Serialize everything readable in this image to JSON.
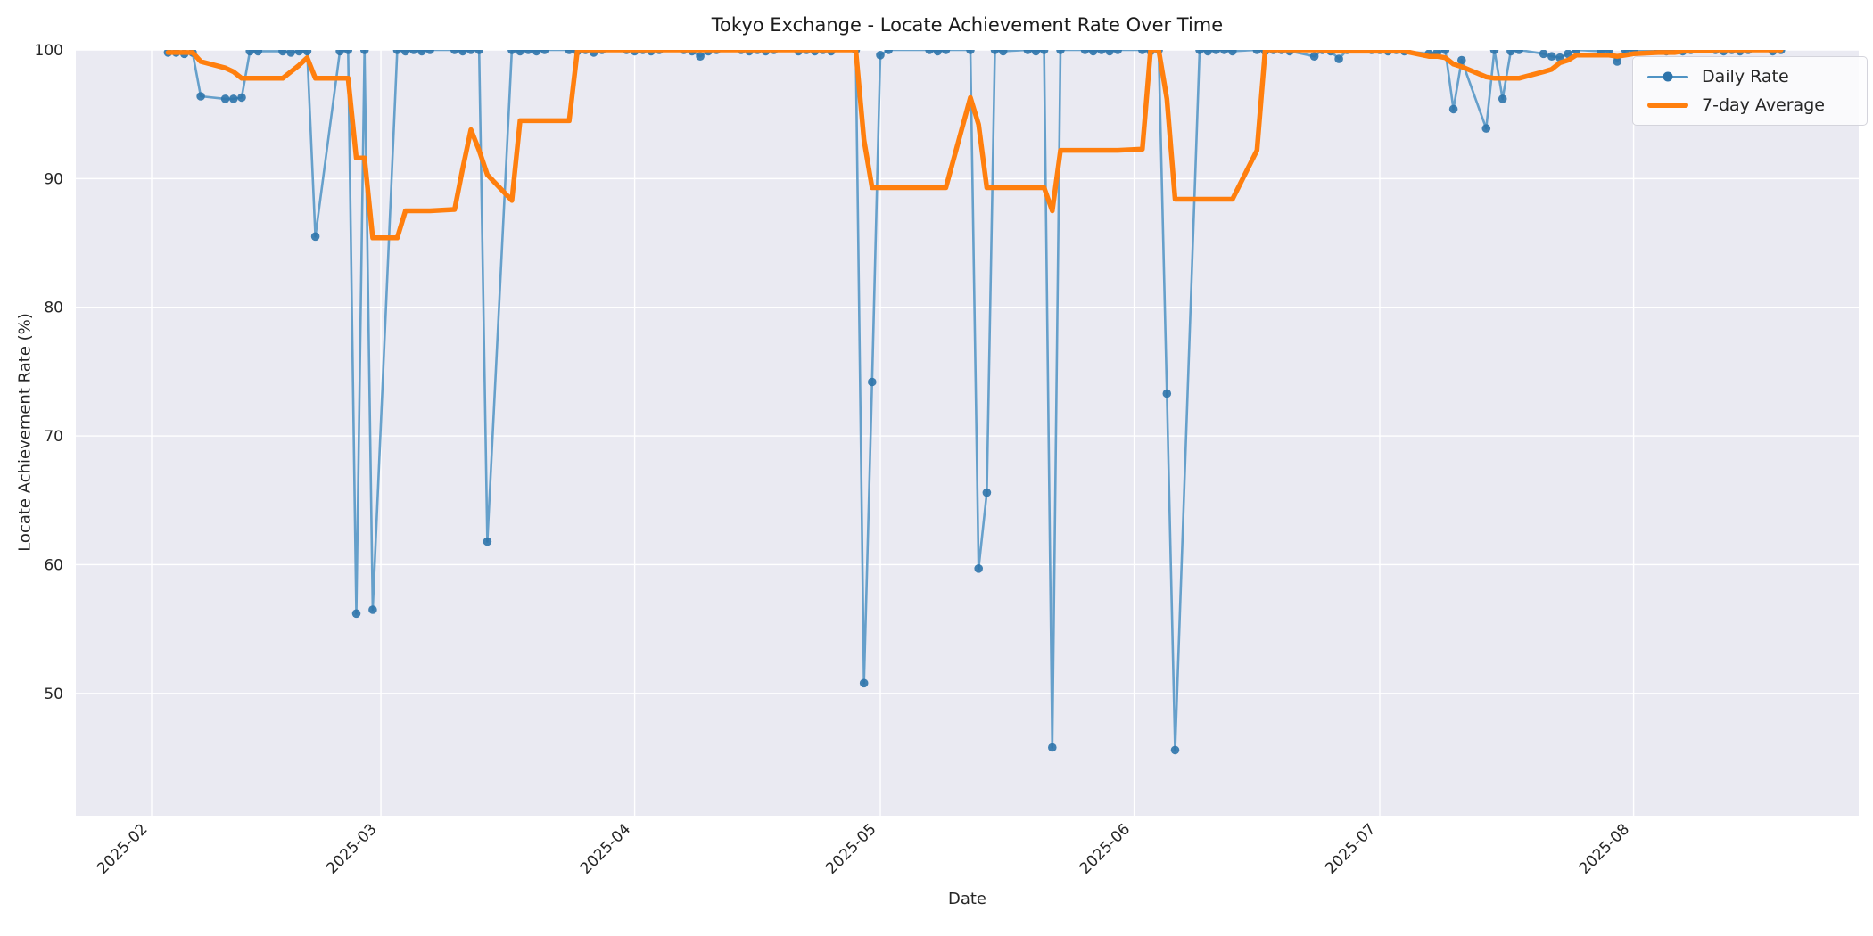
{
  "chart_data": {
    "type": "line",
    "title": "Tokyo Exchange - Locate Achievement Rate Over Time",
    "xlabel": "Date",
    "ylabel": "Locate Achievement Rate (%)",
    "x_tick_labels": [
      "2025-02",
      "2025-03",
      "2025-04",
      "2025-05",
      "2025-06",
      "2025-07",
      "2025-08"
    ],
    "y_tick_labels": [
      100,
      90,
      80,
      70,
      60,
      50
    ],
    "ylim": [
      40.5,
      100
    ],
    "grid": true,
    "legend_position": "upper right",
    "plot_background": "#eaeaf2",
    "grid_color": "#ffffff",
    "dates": [
      "2025-02-03",
      "2025-02-04",
      "2025-02-05",
      "2025-02-06",
      "2025-02-07",
      "2025-02-10",
      "2025-02-11",
      "2025-02-12",
      "2025-02-13",
      "2025-02-14",
      "2025-02-17",
      "2025-02-18",
      "2025-02-19",
      "2025-02-20",
      "2025-02-21",
      "2025-02-24",
      "2025-02-25",
      "2025-02-26",
      "2025-02-27",
      "2025-02-28",
      "2025-03-03",
      "2025-03-04",
      "2025-03-05",
      "2025-03-06",
      "2025-03-07",
      "2025-03-10",
      "2025-03-11",
      "2025-03-12",
      "2025-03-13",
      "2025-03-14",
      "2025-03-17",
      "2025-03-18",
      "2025-03-19",
      "2025-03-20",
      "2025-03-21",
      "2025-03-24",
      "2025-03-25",
      "2025-03-26",
      "2025-03-27",
      "2025-03-28",
      "2025-03-31",
      "2025-04-01",
      "2025-04-02",
      "2025-04-03",
      "2025-04-04",
      "2025-04-07",
      "2025-04-08",
      "2025-04-09",
      "2025-04-10",
      "2025-04-11",
      "2025-04-14",
      "2025-04-15",
      "2025-04-16",
      "2025-04-17",
      "2025-04-18",
      "2025-04-21",
      "2025-04-22",
      "2025-04-23",
      "2025-04-24",
      "2025-04-25",
      "2025-04-28",
      "2025-04-29",
      "2025-04-30",
      "2025-05-01",
      "2025-05-02",
      "2025-05-07",
      "2025-05-08",
      "2025-05-09",
      "2025-05-12",
      "2025-05-13",
      "2025-05-14",
      "2025-05-15",
      "2025-05-16",
      "2025-05-19",
      "2025-05-20",
      "2025-05-21",
      "2025-05-22",
      "2025-05-23",
      "2025-05-26",
      "2025-05-27",
      "2025-05-28",
      "2025-05-29",
      "2025-05-30",
      "2025-06-02",
      "2025-06-03",
      "2025-06-04",
      "2025-06-05",
      "2025-06-06",
      "2025-06-09",
      "2025-06-10",
      "2025-06-11",
      "2025-06-12",
      "2025-06-13",
      "2025-06-16",
      "2025-06-17",
      "2025-06-18",
      "2025-06-19",
      "2025-06-20",
      "2025-06-23",
      "2025-06-24",
      "2025-06-25",
      "2025-06-26",
      "2025-06-27",
      "2025-06-30",
      "2025-07-01",
      "2025-07-02",
      "2025-07-03",
      "2025-07-04",
      "2025-07-07",
      "2025-07-08",
      "2025-07-09",
      "2025-07-10",
      "2025-07-11",
      "2025-07-14",
      "2025-07-15",
      "2025-07-16",
      "2025-07-17",
      "2025-07-18",
      "2025-07-21",
      "2025-07-22",
      "2025-07-23",
      "2025-07-24",
      "2025-07-25",
      "2025-07-28",
      "2025-07-29",
      "2025-07-30",
      "2025-07-31",
      "2025-08-01",
      "2025-08-04",
      "2025-08-05",
      "2025-08-06",
      "2025-08-07",
      "2025-08-08",
      "2025-08-11",
      "2025-08-12",
      "2025-08-13",
      "2025-08-14",
      "2025-08-15",
      "2025-08-18",
      "2025-08-19"
    ],
    "series": [
      {
        "name": "Daily Rate",
        "color": "#4f93c4",
        "marker_color": "#2e74ab",
        "style": "line-markers",
        "values": [
          99.8,
          99.8,
          99.7,
          99.8,
          96.4,
          96.2,
          96.2,
          96.3,
          99.9,
          99.9,
          99.9,
          99.8,
          99.9,
          99.9,
          85.5,
          99.9,
          100,
          56.2,
          100,
          56.5,
          100,
          99.9,
          100,
          99.9,
          100,
          100,
          99.9,
          100,
          100,
          61.8,
          100,
          99.9,
          100,
          99.9,
          100,
          100,
          99.9,
          100,
          99.8,
          100,
          100,
          99.9,
          100,
          99.9,
          100,
          100,
          99.9,
          99.5,
          99.9,
          100,
          100,
          99.9,
          100,
          99.9,
          100,
          99.9,
          100,
          99.9,
          100,
          99.9,
          100,
          50.8,
          74.2,
          99.6,
          100,
          100,
          99.9,
          100,
          100,
          59.7,
          65.6,
          100,
          99.9,
          100,
          99.9,
          100,
          45.8,
          100,
          100,
          99.9,
          100,
          99.9,
          100,
          100,
          99.9,
          100,
          73.3,
          45.6,
          100,
          99.9,
          100,
          100,
          99.9,
          100,
          99.9,
          100,
          100,
          99.9,
          99.5,
          100,
          99.9,
          99.3,
          100,
          100,
          100,
          99.9,
          100,
          99.9,
          99.7,
          99.8,
          100,
          95.4,
          99.2,
          93.9,
          100,
          96.2,
          99.9,
          100,
          99.7,
          99.5,
          99.4,
          99.7,
          100,
          99.9,
          100,
          99.1,
          100,
          100,
          100,
          99.9,
          100,
          99.9,
          100,
          100,
          99.9,
          100,
          99.9,
          100,
          99.9,
          100
        ]
      },
      {
        "name": "7-day Average",
        "color": "#ff7f0e",
        "style": "line",
        "values": [
          99.8,
          99.8,
          99.8,
          99.8,
          99.1,
          98.6,
          98.3,
          97.8,
          97.8,
          97.8,
          97.8,
          98.3,
          98.8,
          99.4,
          97.8,
          97.8,
          97.8,
          91.6,
          91.6,
          85.4,
          85.4,
          87.5,
          87.5,
          87.5,
          87.5,
          87.6,
          90.8,
          93.8,
          92.2,
          90.3,
          88.3,
          94.5,
          94.5,
          94.5,
          94.5,
          94.5,
          100,
          100,
          100,
          100,
          100,
          100,
          100,
          100,
          100,
          100,
          100,
          100,
          100,
          100,
          100,
          100,
          100,
          100,
          100,
          100,
          100,
          100,
          100,
          100,
          100,
          93.0,
          89.3,
          89.3,
          89.3,
          89.3,
          89.3,
          89.3,
          96.3,
          94.2,
          89.3,
          89.3,
          89.3,
          89.3,
          89.3,
          89.3,
          87.5,
          92.2,
          92.2,
          92.2,
          92.2,
          92.2,
          92.2,
          92.3,
          100,
          100,
          96.2,
          88.4,
          88.4,
          88.4,
          88.4,
          88.4,
          88.4,
          92.2,
          100,
          100,
          100,
          100,
          100,
          100,
          99.9,
          99.9,
          99.9,
          99.9,
          99.9,
          99.9,
          99.9,
          99.9,
          99.5,
          99.5,
          99.4,
          98.9,
          98.7,
          97.9,
          97.8,
          97.8,
          97.8,
          97.8,
          98.3,
          98.5,
          99.0,
          99.2,
          99.6,
          99.6,
          99.6,
          99.5,
          99.6,
          99.7,
          99.8,
          99.8,
          99.8,
          99.9,
          99.9,
          100,
          100,
          100,
          100,
          100,
          100,
          100
        ]
      }
    ]
  }
}
